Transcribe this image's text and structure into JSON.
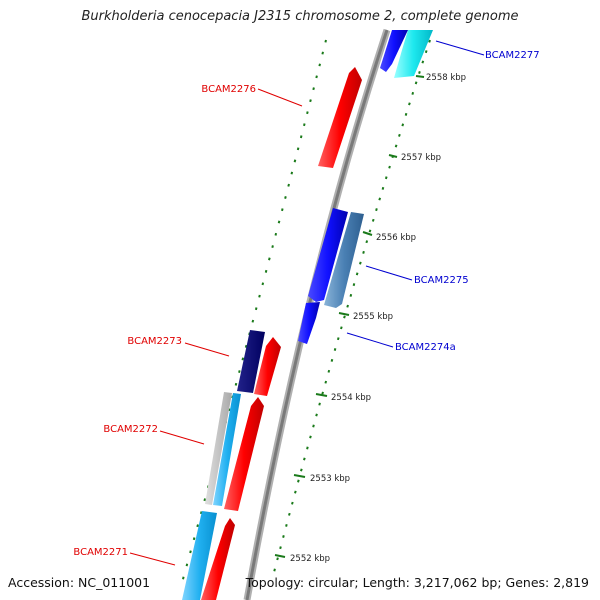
{
  "title": "Burkholderia cenocepacia J2315 chromosome 2, complete genome",
  "footer": {
    "accession": "Accession: NC_011001",
    "summary": "Topology: circular; Length: 3,217,062 bp; Genes: 2,819"
  },
  "colors": {
    "forward_label": "#e00000",
    "reverse_label": "#0000d0",
    "tick": "#1a7a1a",
    "backbone": "#808080"
  },
  "scale": {
    "unit": "kbp",
    "labels": [
      "2552 kbp",
      "2553 kbp",
      "2554 kbp",
      "2555 kbp",
      "2556 kbp",
      "2557 kbp",
      "2558 kbp"
    ]
  },
  "gene_labels": [
    {
      "text": "BCAM2277",
      "strand": "reverse"
    },
    {
      "text": "BCAM2276",
      "strand": "forward"
    },
    {
      "text": "BCAM2275",
      "strand": "reverse"
    },
    {
      "text": "BCAM2274a",
      "strand": "reverse"
    },
    {
      "text": "BCAM2273",
      "strand": "forward"
    },
    {
      "text": "BCAM2272",
      "strand": "forward"
    },
    {
      "text": "BCAM2271",
      "strand": "forward"
    }
  ]
}
